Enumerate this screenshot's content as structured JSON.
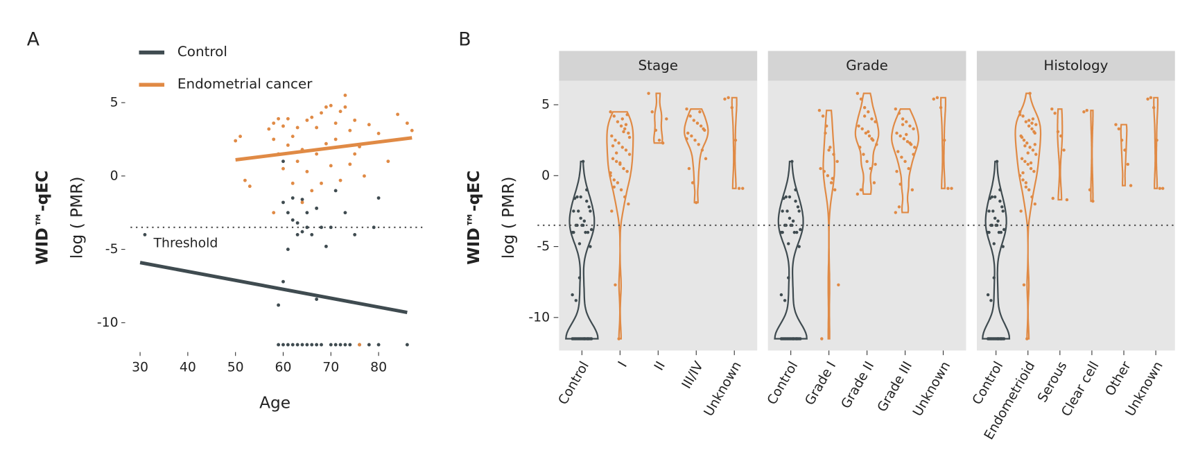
{
  "chart_data": [
    {
      "type": "scatter",
      "panel_label": "A",
      "xlabel": "Age",
      "ylabel": [
        "WID™-qEC",
        "log ( PMR)"
      ],
      "xlim": [
        28,
        89.5
      ],
      "ylim": [
        -12,
        5.8
      ],
      "xticks": [
        30,
        40,
        50,
        60,
        70,
        80
      ],
      "yticks": [
        5,
        0,
        -5,
        -10
      ],
      "threshold": -3.5,
      "threshold_label": "Threshold",
      "series": [
        {
          "name": "Control",
          "color": "#3f4b50",
          "x": [
            31,
            59,
            60,
            60,
            60,
            61,
            61,
            62,
            62,
            63,
            63,
            64,
            64,
            65,
            65,
            66,
            67,
            67,
            68,
            69,
            70,
            71,
            73,
            75,
            79,
            80,
            59,
            60,
            61,
            62,
            63,
            64,
            65,
            66,
            67,
            68,
            70,
            71,
            72,
            73,
            74,
            76,
            78,
            80,
            86
          ],
          "values": [
            -4,
            -8.8,
            -7.2,
            1,
            -1.8,
            -5,
            -2.5,
            -1.5,
            -3,
            -3.2,
            -4,
            -3.8,
            -1.6,
            -2.5,
            -3.5,
            -4,
            -2.2,
            -8.4,
            -3.5,
            -4.8,
            -3.5,
            -1,
            -2.5,
            -4,
            -3.5,
            -1.5,
            -11.5,
            -11.5,
            -11.5,
            -11.5,
            -11.5,
            -11.5,
            -11.5,
            -11.5,
            -11.5,
            -11.5,
            -11.5,
            -11.5,
            -11.5,
            -11.5,
            -11.5,
            -11.5,
            -11.5,
            -11.5,
            -11.5
          ],
          "trend": {
            "x": [
              30,
              86
            ],
            "values": [
              -5.9,
              -9.3
            ]
          }
        },
        {
          "name": "Endometrial cancer",
          "color": "#e08a45",
          "x": [
            50,
            51,
            52,
            53,
            57,
            58,
            58,
            58,
            59,
            59,
            60,
            60,
            61,
            61,
            62,
            62,
            63,
            63,
            64,
            64,
            65,
            65,
            66,
            66,
            67,
            67,
            68,
            68,
            69,
            69,
            70,
            70,
            71,
            71,
            72,
            72,
            73,
            73,
            74,
            74,
            75,
            75,
            76,
            77,
            78,
            80,
            82,
            84,
            86,
            87,
            76
          ],
          "values": [
            2.4,
            2.7,
            -0.3,
            -0.7,
            3.2,
            3.6,
            2.5,
            -2.5,
            3.9,
            1.5,
            3.4,
            0.5,
            3.9,
            2.1,
            2.7,
            -0.5,
            3.3,
            1,
            -1.8,
            1.8,
            3.8,
            0.3,
            4,
            -1,
            3.3,
            1.5,
            4.3,
            -0.5,
            4.7,
            2.2,
            4.8,
            0.7,
            3.6,
            2.5,
            4.4,
            -0.3,
            5.5,
            4.7,
            3.1,
            0.8,
            3.8,
            1.5,
            2,
            0,
            3.5,
            2.9,
            1,
            4.2,
            3.6,
            3.1,
            -11.5
          ],
          "trend": {
            "x": [
              50,
              87
            ],
            "values": [
              1.1,
              2.6
            ]
          }
        }
      ]
    },
    {
      "type": "violin",
      "panel_label": "B",
      "ylabel": [
        "WID™-qEC",
        "log ( PMR)"
      ],
      "ylim": [
        -12.33,
        6.68
      ],
      "yticks": [
        5,
        0,
        -5,
        -10
      ],
      "threshold": -3.5,
      "facets": [
        {
          "title": "Stage",
          "series": [
            {
              "name": "Control",
              "color": "#3f4b50",
              "values": [
                -4,
                -8.8,
                -7.2,
                1,
                -1.8,
                -5,
                -2.5,
                -1.5,
                -3,
                -3.2,
                -4,
                -3.8,
                -1.6,
                -2.5,
                -3.5,
                -4,
                -2.2,
                -8.4,
                -3.5,
                -4.8,
                -3.5,
                -1,
                -2.5,
                -4,
                -3.5,
                -1.5,
                -11.5,
                -11.5,
                -11.5,
                -11.5,
                -11.5,
                -11.5,
                -11.5,
                -11.5,
                -11.5,
                -11.5,
                -11.5,
                -11.5,
                -11.5,
                -11.5,
                -11.5,
                -11.5,
                -11.5,
                -11.5,
                -11.5
              ]
            },
            {
              "name": "I",
              "color": "#e08a45",
              "values": [
                4.5,
                4.2,
                3.8,
                3.5,
                3.3,
                3,
                2.8,
                2.5,
                2.3,
                2,
                1.8,
                1.5,
                1.2,
                1,
                0.8,
                0.5,
                0.3,
                0,
                -0.3,
                -0.5,
                -1,
                -1.5,
                -2,
                -2.5,
                -7.7,
                -11.5,
                4,
                3.6,
                2.7,
                2.1,
                1.6,
                0.9,
                3.1,
                4.3,
                0.2,
                -0.8
              ]
            },
            {
              "name": "II",
              "color": "#e08a45",
              "values": [
                5.8,
                4.5,
                3.2,
                2.5,
                2.3,
                4
              ]
            },
            {
              "name": "III/IV",
              "color": "#e08a45",
              "values": [
                4.7,
                4.2,
                3.9,
                3.7,
                3.5,
                3.2,
                3,
                2.8,
                2.5,
                2.2,
                1.8,
                1.2,
                0.5,
                -0.5,
                -1.9,
                4.5,
                3.3,
                2.6
              ]
            },
            {
              "name": "Unknown",
              "color": "#e08a45",
              "values": [
                5.4,
                5.5,
                4.8,
                2.5,
                -0.9,
                -0.9
              ]
            }
          ]
        },
        {
          "title": "Grade",
          "series": [
            {
              "name": "Control",
              "color": "#3f4b50",
              "values": [
                -4,
                -8.8,
                -7.2,
                1,
                -1.8,
                -5,
                -2.5,
                -1.5,
                -3,
                -3.2,
                -4,
                -3.8,
                -1.6,
                -2.5,
                -3.5,
                -4,
                -2.2,
                -8.4,
                -3.5,
                -4.8,
                -3.5,
                -1,
                -2.5,
                -4,
                -3.5,
                -1.5,
                -11.5,
                -11.5,
                -11.5,
                -11.5,
                -11.5,
                -11.5,
                -11.5,
                -11.5,
                -11.5,
                -11.5,
                -11.5,
                -11.5,
                -11.5,
                -11.5,
                -11.5,
                -11.5,
                -11.5,
                -11.5,
                -11.5
              ]
            },
            {
              "name": "Grade I",
              "color": "#e08a45",
              "values": [
                4.6,
                4.2,
                3.5,
                2,
                1.5,
                1,
                0.5,
                0.3,
                0,
                -0.5,
                -1,
                -7.7,
                -11.5,
                3,
                1.8,
                -0.2
              ]
            },
            {
              "name": "Grade II",
              "color": "#e08a45",
              "values": [
                5.8,
                5.4,
                4.8,
                4.5,
                4,
                3.8,
                3.5,
                3.3,
                3,
                2.8,
                2.5,
                2.2,
                2,
                1.5,
                1,
                0.5,
                -0.5,
                -1.3,
                -1,
                4.2,
                3.1,
                2.6,
                0.8
              ]
            },
            {
              "name": "Grade III",
              "color": "#e08a45",
              "values": [
                4.7,
                4.4,
                4,
                3.8,
                3.5,
                3.3,
                3,
                2.8,
                2.6,
                2.4,
                2.2,
                2,
                1.7,
                1.3,
                1,
                0.5,
                -1,
                -2.6,
                -2.2,
                3.6,
                2.9,
                2.3,
                1.5,
                0.3,
                -0.6
              ]
            },
            {
              "name": "Unknown",
              "color": "#e08a45",
              "values": [
                5.4,
                5.5,
                4.8,
                2.5,
                -0.9,
                -0.9
              ]
            }
          ]
        },
        {
          "title": "Histology",
          "series": [
            {
              "name": "Control",
              "color": "#3f4b50",
              "values": [
                -4,
                -8.8,
                -7.2,
                1,
                -1.8,
                -5,
                -2.5,
                -1.5,
                -3,
                -3.2,
                -4,
                -3.8,
                -1.6,
                -2.5,
                -3.5,
                -4,
                -2.2,
                -8.4,
                -3.5,
                -4.8,
                -3.5,
                -1,
                -2.5,
                -4,
                -3.5,
                -1.5,
                -11.5,
                -11.5,
                -11.5,
                -11.5,
                -11.5,
                -11.5,
                -11.5,
                -11.5,
                -11.5,
                -11.5,
                -11.5,
                -11.5,
                -11.5,
                -11.5,
                -11.5,
                -11.5,
                -11.5,
                -11.5,
                -11.5
              ]
            },
            {
              "name": "Endometrioid",
              "color": "#e08a45",
              "values": [
                4.5,
                4.2,
                3.8,
                3.5,
                3.3,
                3,
                2.8,
                2.5,
                2.3,
                2,
                1.8,
                1.5,
                1.2,
                1,
                0.8,
                0.5,
                0.3,
                0,
                -0.3,
                -0.5,
                -1,
                -1.5,
                -2,
                -2.5,
                -7.7,
                -11.5,
                5.8,
                4,
                3.6,
                2.7,
                2.1,
                1.6,
                0.9,
                3.1,
                4.3,
                0.2,
                -0.8,
                3.9,
                3.7,
                2.2
              ]
            },
            {
              "name": "Serous",
              "color": "#e08a45",
              "values": [
                4.7,
                4.4,
                3.1,
                2.8,
                1.8,
                -1.7,
                -1.6
              ]
            },
            {
              "name": "Clear cell",
              "color": "#e08a45",
              "values": [
                4.5,
                4.6,
                -1,
                -1.8
              ]
            },
            {
              "name": "Other",
              "color": "#e08a45",
              "values": [
                3.6,
                3.3,
                2.5,
                1.8,
                0.8,
                -0.7
              ]
            },
            {
              "name": "Unknown",
              "color": "#e08a45",
              "values": [
                5.4,
                5.5,
                4.8,
                2.5,
                -0.9,
                -0.9
              ]
            }
          ]
        }
      ]
    }
  ]
}
